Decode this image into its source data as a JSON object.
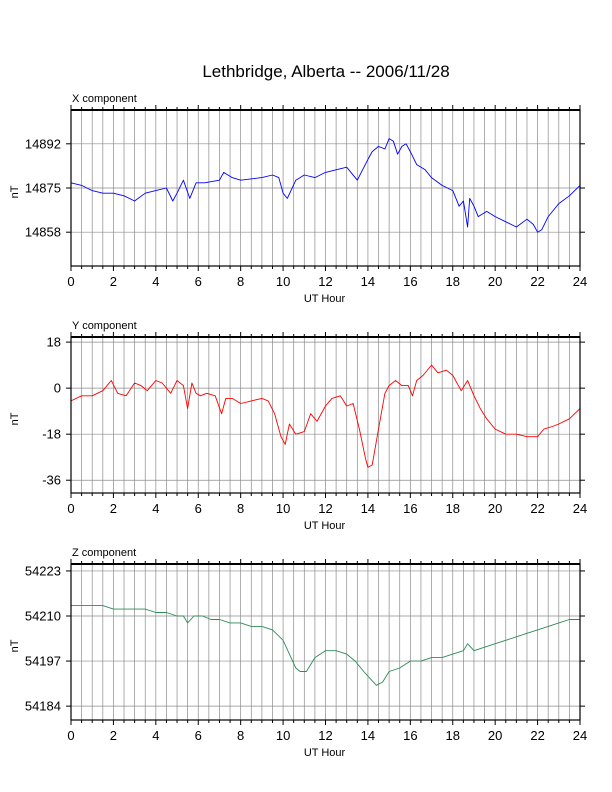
{
  "title": "Lethbridge, Alberta -- 2006/11/28",
  "chart_data": [
    {
      "type": "line",
      "panel_title": "X component",
      "xlabel": "UT Hour",
      "ylabel": "nT",
      "xlim": [
        0,
        24
      ],
      "ylim": [
        14845,
        14905
      ],
      "x_ticks": [
        0,
        2,
        4,
        6,
        8,
        10,
        12,
        14,
        16,
        18,
        20,
        22,
        24
      ],
      "y_ticks": [
        14858,
        14875,
        14892
      ],
      "grid": true,
      "series": [
        {
          "color": "#0000ff",
          "x": [
            0,
            0.5,
            1,
            1.5,
            2,
            2.5,
            3,
            3.5,
            4,
            4.5,
            4.8,
            5,
            5.3,
            5.6,
            5.9,
            6.3,
            7,
            7.2,
            7.6,
            8,
            9,
            9.5,
            9.8,
            10,
            10.2,
            10.6,
            11,
            11.5,
            12,
            12.5,
            13,
            13.5,
            14,
            14.2,
            14.5,
            14.8,
            15,
            15.2,
            15.4,
            15.6,
            15.8,
            16,
            16.3,
            16.7,
            17,
            17.5,
            18,
            18.3,
            18.5,
            18.7,
            18.8,
            19,
            19.2,
            19.6,
            20,
            20.5,
            21,
            21.5,
            21.8,
            22,
            22.2,
            22.5,
            23,
            23.5,
            24
          ],
          "values": [
            14877,
            14876,
            14874,
            14873,
            14873,
            14872,
            14870,
            14873,
            14874,
            14875,
            14870,
            14873,
            14878,
            14871,
            14877,
            14877,
            14878,
            14881,
            14879,
            14878,
            14879,
            14880,
            14879,
            14873,
            14871,
            14878,
            14880,
            14879,
            14881,
            14882,
            14883,
            14878,
            14886,
            14889,
            14891,
            14890,
            14894,
            14893,
            14888,
            14891,
            14892,
            14889,
            14884,
            14882,
            14879,
            14876,
            14874,
            14868,
            14870,
            14860,
            14871,
            14868,
            14864,
            14866,
            14864,
            14862,
            14860,
            14863,
            14861,
            14858,
            14859,
            14864,
            14869,
            14872,
            14876
          ]
        }
      ]
    },
    {
      "type": "line",
      "panel_title": "Y component",
      "xlabel": "UT Hour",
      "ylabel": "nT",
      "xlim": [
        0,
        24
      ],
      "ylim": [
        -41,
        20
      ],
      "x_ticks": [
        0,
        2,
        4,
        6,
        8,
        10,
        12,
        14,
        16,
        18,
        20,
        22,
        24
      ],
      "y_ticks": [
        -36,
        -18,
        0,
        18
      ],
      "grid": true,
      "series": [
        {
          "color": "#ff0000",
          "x": [
            0,
            0.5,
            1,
            1.5,
            1.9,
            2.2,
            2.6,
            3,
            3.3,
            3.6,
            4,
            4.3,
            4.7,
            5,
            5.3,
            5.5,
            5.7,
            5.9,
            6.1,
            6.4,
            6.8,
            7.1,
            7.3,
            7.6,
            8,
            8.5,
            9,
            9.3,
            9.6,
            9.9,
            10.1,
            10.3,
            10.6,
            11,
            11.3,
            11.6,
            12,
            12.3,
            12.7,
            13,
            13.3,
            13.6,
            13.9,
            14,
            14.2,
            14.5,
            14.8,
            15,
            15.3,
            15.6,
            15.9,
            16.1,
            16.3,
            16.6,
            17,
            17.3,
            17.7,
            18,
            18.4,
            18.7,
            19,
            19.3,
            19.6,
            20,
            20.5,
            21,
            21.5,
            22,
            22.3,
            22.7,
            23,
            23.5,
            24
          ],
          "values": [
            -5,
            -3,
            -3,
            -1,
            3,
            -2,
            -3,
            2,
            1,
            -1,
            3,
            2,
            -2,
            3,
            1,
            -8,
            2,
            -2,
            -3,
            -2,
            -3,
            -10,
            -4,
            -4,
            -6,
            -5,
            -4,
            -5,
            -10,
            -19,
            -22,
            -14,
            -18,
            -17,
            -10,
            -13,
            -7,
            -4,
            -3,
            -7,
            -6,
            -16,
            -28,
            -31,
            -30,
            -16,
            -2,
            1,
            3,
            1,
            1,
            -3,
            3,
            5,
            9,
            6,
            7,
            5,
            -1,
            3,
            -3,
            -8,
            -12,
            -16,
            -18,
            -18,
            -19,
            -19,
            -16,
            -15,
            -14,
            -12,
            -8
          ]
        }
      ]
    },
    {
      "type": "line",
      "panel_title": "Z component",
      "xlabel": "UT Hour",
      "ylabel": "nT",
      "xlim": [
        0,
        24
      ],
      "ylim": [
        54180,
        54225
      ],
      "x_ticks": [
        0,
        2,
        4,
        6,
        8,
        10,
        12,
        14,
        16,
        18,
        20,
        22,
        24
      ],
      "y_ticks": [
        54184,
        54197,
        54210,
        54223
      ],
      "grid": true,
      "series": [
        {
          "color": "#2e8b57",
          "x": [
            0,
            0.5,
            1,
            1.5,
            2,
            2.5,
            3,
            3.5,
            4,
            4.5,
            5,
            5.3,
            5.5,
            5.8,
            6.2,
            6.6,
            7,
            7.5,
            8,
            8.5,
            9,
            9.5,
            10,
            10.3,
            10.6,
            10.8,
            11.1,
            11.5,
            12,
            12.5,
            13,
            13.4,
            13.8,
            14.1,
            14.4,
            14.7,
            15,
            15.5,
            16,
            16.5,
            17,
            17.5,
            18,
            18.5,
            18.7,
            19,
            19.5,
            20,
            20.5,
            21,
            21.5,
            22,
            22.5,
            23,
            23.5,
            24
          ],
          "values": [
            54213,
            54213,
            54213,
            54213,
            54212,
            54212,
            54212,
            54212,
            54211,
            54211,
            54210,
            54210,
            54208,
            54210,
            54210,
            54209,
            54209,
            54208,
            54208,
            54207,
            54207,
            54206,
            54203,
            54199,
            54195,
            54194,
            54194,
            54198,
            54200,
            54200,
            54199,
            54197,
            54194,
            54192,
            54190,
            54191,
            54194,
            54195,
            54197,
            54197,
            54198,
            54198,
            54199,
            54200,
            54202,
            54200,
            54201,
            54202,
            54203,
            54204,
            54205,
            54206,
            54207,
            54208,
            54209,
            54209
          ]
        }
      ]
    }
  ]
}
